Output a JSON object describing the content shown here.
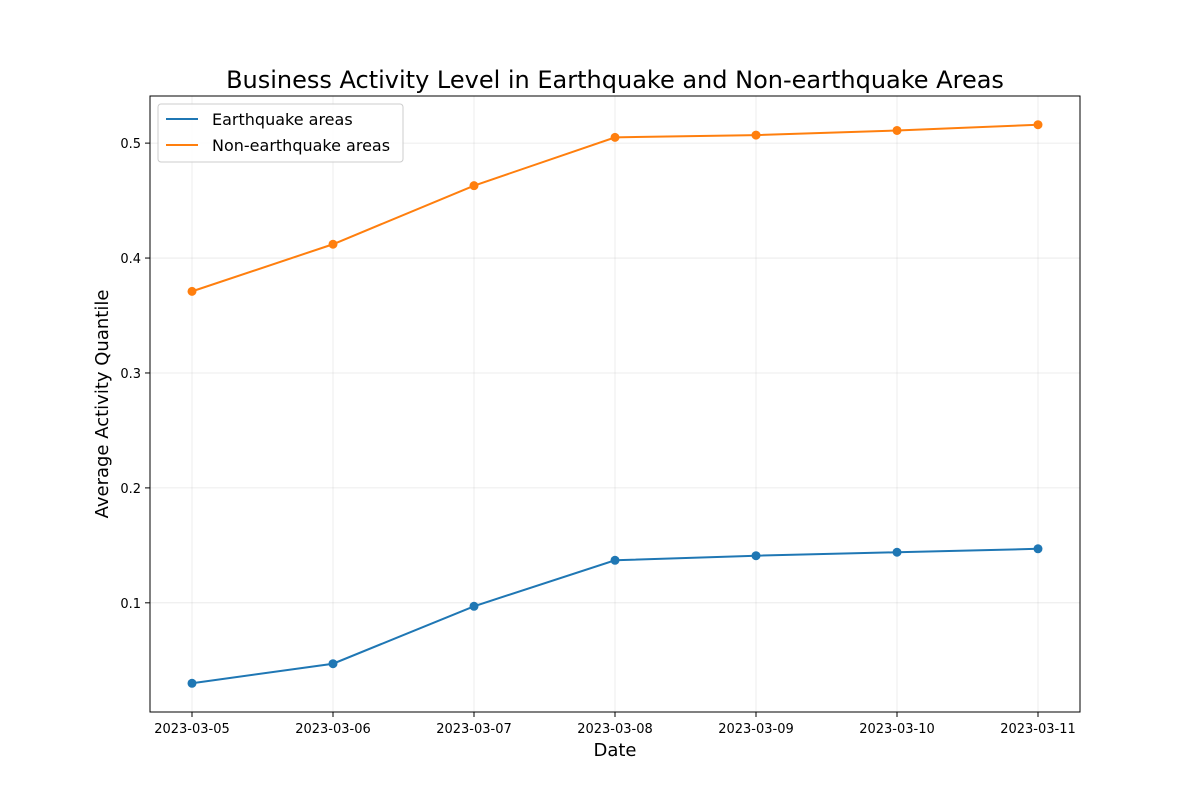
{
  "chart_data": {
    "type": "line",
    "title": "Business Activity Level in Earthquake and Non-earthquake Areas",
    "xlabel": "Date",
    "ylabel": "Average Activity Quantile",
    "categories": [
      "2023-03-05",
      "2023-03-06",
      "2023-03-07",
      "2023-03-08",
      "2023-03-09",
      "2023-03-10",
      "2023-03-11"
    ],
    "ylim": [
      0.005,
      0.541
    ],
    "yticks": [
      0.1,
      0.2,
      0.3,
      0.4,
      0.5
    ],
    "ytick_labels": [
      "0.1",
      "0.2",
      "0.3",
      "0.4",
      "0.5"
    ],
    "grid": true,
    "legend_position": "top-left",
    "series": [
      {
        "name": "Earthquake areas",
        "color": "#1f77b4",
        "values": [
          0.03,
          0.047,
          0.097,
          0.137,
          0.141,
          0.144,
          0.147
        ]
      },
      {
        "name": "Non-earthquake areas",
        "color": "#ff7f0e",
        "values": [
          0.371,
          0.412,
          0.463,
          0.505,
          0.507,
          0.511,
          0.516
        ]
      }
    ]
  }
}
